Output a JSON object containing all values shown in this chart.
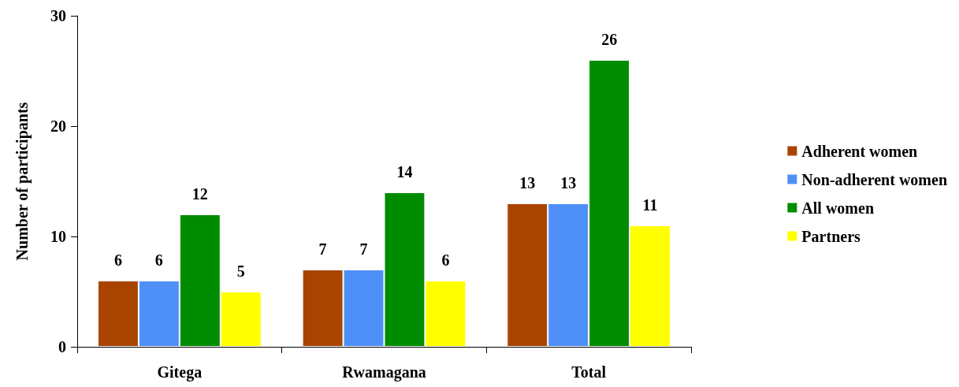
{
  "chart_data": {
    "type": "bar",
    "ylabel": "Number of participants",
    "categories": [
      "Gitega",
      "Rwamagana",
      "Total"
    ],
    "series": [
      {
        "name": "Adherent women",
        "color": "#a84400",
        "values": [
          6,
          7,
          13
        ]
      },
      {
        "name": "Non-adherent women",
        "color": "#4f8ff8",
        "values": [
          6,
          7,
          13
        ]
      },
      {
        "name": "All women",
        "color": "#008c00",
        "values": [
          12,
          14,
          26
        ]
      },
      {
        "name": "Partners",
        "color": "#ffff00",
        "values": [
          5,
          6,
          11
        ]
      }
    ],
    "ylim": [
      0,
      30
    ],
    "yticks": [
      0,
      10,
      20,
      30
    ],
    "grid": false,
    "legend": "right",
    "data_labels": true
  }
}
